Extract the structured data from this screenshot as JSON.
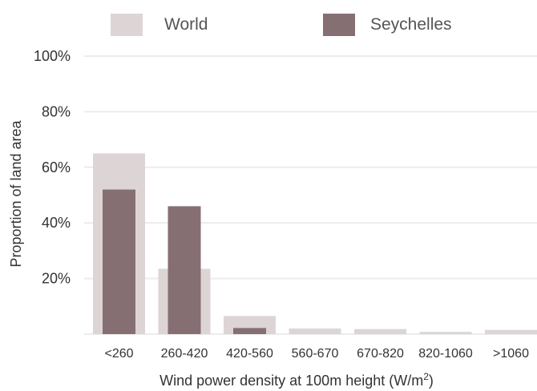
{
  "chart_data": {
    "type": "bar",
    "categories": [
      "<260",
      "260-420",
      "420-560",
      "560-670",
      "670-820",
      "820-1060",
      ">1060"
    ],
    "series": [
      {
        "name": "World",
        "color": "#ddd5d5",
        "values": [
          65,
          23.5,
          6.5,
          2,
          1.8,
          0.8,
          1.5
        ]
      },
      {
        "name": "Seychelles",
        "color": "#866f73",
        "values": [
          52,
          46,
          2.2,
          0,
          0,
          0,
          0
        ]
      }
    ],
    "yticks": [
      "100%",
      "80%",
      "60%",
      "40%",
      "20%"
    ],
    "ytick_values": [
      100,
      80,
      60,
      40,
      20
    ],
    "ylim": [
      0,
      100
    ],
    "ylabel": "Proportion of land area",
    "xlabel": "Wind power density at 100m height (W/m",
    "xlabel_superscript": "2",
    "xlabel_suffix": ")",
    "legend_position": "top",
    "grid": true
  }
}
